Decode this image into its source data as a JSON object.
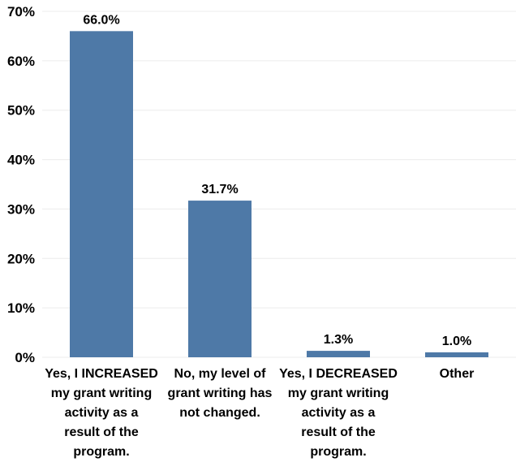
{
  "chart_data": {
    "type": "bar",
    "categories": [
      "Yes, I INCREASED my grant writing activity as a result of the program.",
      "No, my level of grant writing has not changed.",
      "Yes, I DECREASED my grant writing activity as a result of the program.",
      "Other"
    ],
    "category_lines": [
      [
        "Yes, I INCREASED",
        "my grant writing",
        "activity as a",
        "result of the",
        "program."
      ],
      [
        "No, my level of",
        "grant writing has",
        "not changed."
      ],
      [
        "Yes, I DECREASED",
        "my grant writing",
        "activity as a",
        "result of the",
        "program."
      ],
      [
        "Other"
      ]
    ],
    "values": [
      66.0,
      31.7,
      1.3,
      1.0
    ],
    "value_labels": [
      "66.0%",
      "31.7%",
      "1.3%",
      "1.0%"
    ],
    "ylim": [
      0,
      70
    ],
    "yticks": [
      0,
      10,
      20,
      30,
      40,
      50,
      60,
      70
    ],
    "ytick_labels": [
      "0%",
      "10%",
      "20%",
      "30%",
      "40%",
      "50%",
      "60%",
      "70%"
    ],
    "grid": true,
    "bar_color": "#4e79a7",
    "title": "",
    "xlabel": "",
    "ylabel": ""
  }
}
